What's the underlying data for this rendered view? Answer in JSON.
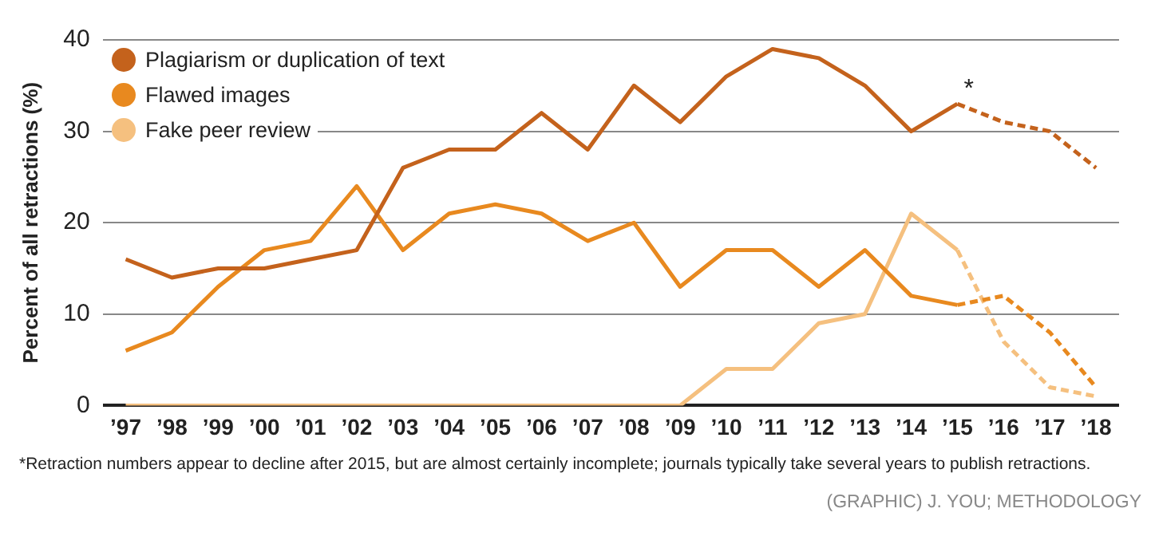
{
  "chart_data": {
    "type": "line",
    "ylabel": "Percent of all retractions (%)",
    "categories": [
      "’97",
      "’98",
      "’99",
      "’00",
      "’01",
      "’02",
      "’03",
      "’04",
      "’05",
      "’06",
      "’07",
      "’08",
      "’09",
      "’10",
      "’11",
      "’12",
      "’13",
      "’14",
      "’15",
      "’16",
      "’17",
      "’18"
    ],
    "series": [
      {
        "name": "Plagiarism or duplication of text",
        "color": "#c4621c",
        "line_style": "solid",
        "values": [
          16,
          14,
          15,
          15,
          16,
          17,
          26,
          28,
          28,
          32,
          28,
          35,
          31,
          36,
          39,
          38,
          35,
          30,
          33,
          null,
          null,
          null
        ]
      },
      {
        "name": "Flawed images",
        "color": "#e8891f",
        "line_style": "solid",
        "values": [
          6,
          8,
          13,
          17,
          18,
          24,
          17,
          21,
          22,
          21,
          18,
          20,
          13,
          17,
          17,
          13,
          17,
          12,
          11,
          null,
          null,
          null
        ]
      },
      {
        "name": "Fake peer review",
        "color": "#f5c07f",
        "line_style": "solid",
        "values": [
          0,
          0,
          0,
          0,
          0,
          0,
          0,
          0,
          0,
          0,
          0,
          0,
          0,
          4,
          4,
          9,
          10,
          21,
          17,
          null,
          null,
          null
        ]
      },
      {
        "color": "#c4621c",
        "line_style": "dashed",
        "values": [
          null,
          null,
          null,
          null,
          null,
          null,
          null,
          null,
          null,
          null,
          null,
          null,
          null,
          null,
          null,
          null,
          null,
          null,
          33,
          31,
          30,
          26
        ]
      },
      {
        "color": "#e8891f",
        "line_style": "dashed",
        "values": [
          null,
          null,
          null,
          null,
          null,
          null,
          null,
          null,
          null,
          null,
          null,
          null,
          null,
          null,
          null,
          null,
          null,
          null,
          11,
          12,
          8,
          2
        ]
      },
      {
        "color": "#f5c07f",
        "line_style": "dashed",
        "values": [
          null,
          null,
          null,
          null,
          null,
          null,
          null,
          null,
          null,
          null,
          null,
          null,
          null,
          null,
          null,
          null,
          null,
          null,
          17,
          7,
          2,
          1
        ]
      }
    ],
    "ylim": [
      0,
      40
    ],
    "yticks": [
      0,
      10,
      20,
      30,
      40
    ],
    "grid": "y",
    "legend": "top left",
    "marker": "none",
    "annotations": [
      {
        "text": "*",
        "x": "’15",
        "y": 33
      },
      "*Retraction numbers appear to decline after 2015, but are almost certainly incomplete; journals typically take several years to publish retractions.",
      "(GRAPHIC) J. YOU; METHODOLOGY"
    ]
  }
}
